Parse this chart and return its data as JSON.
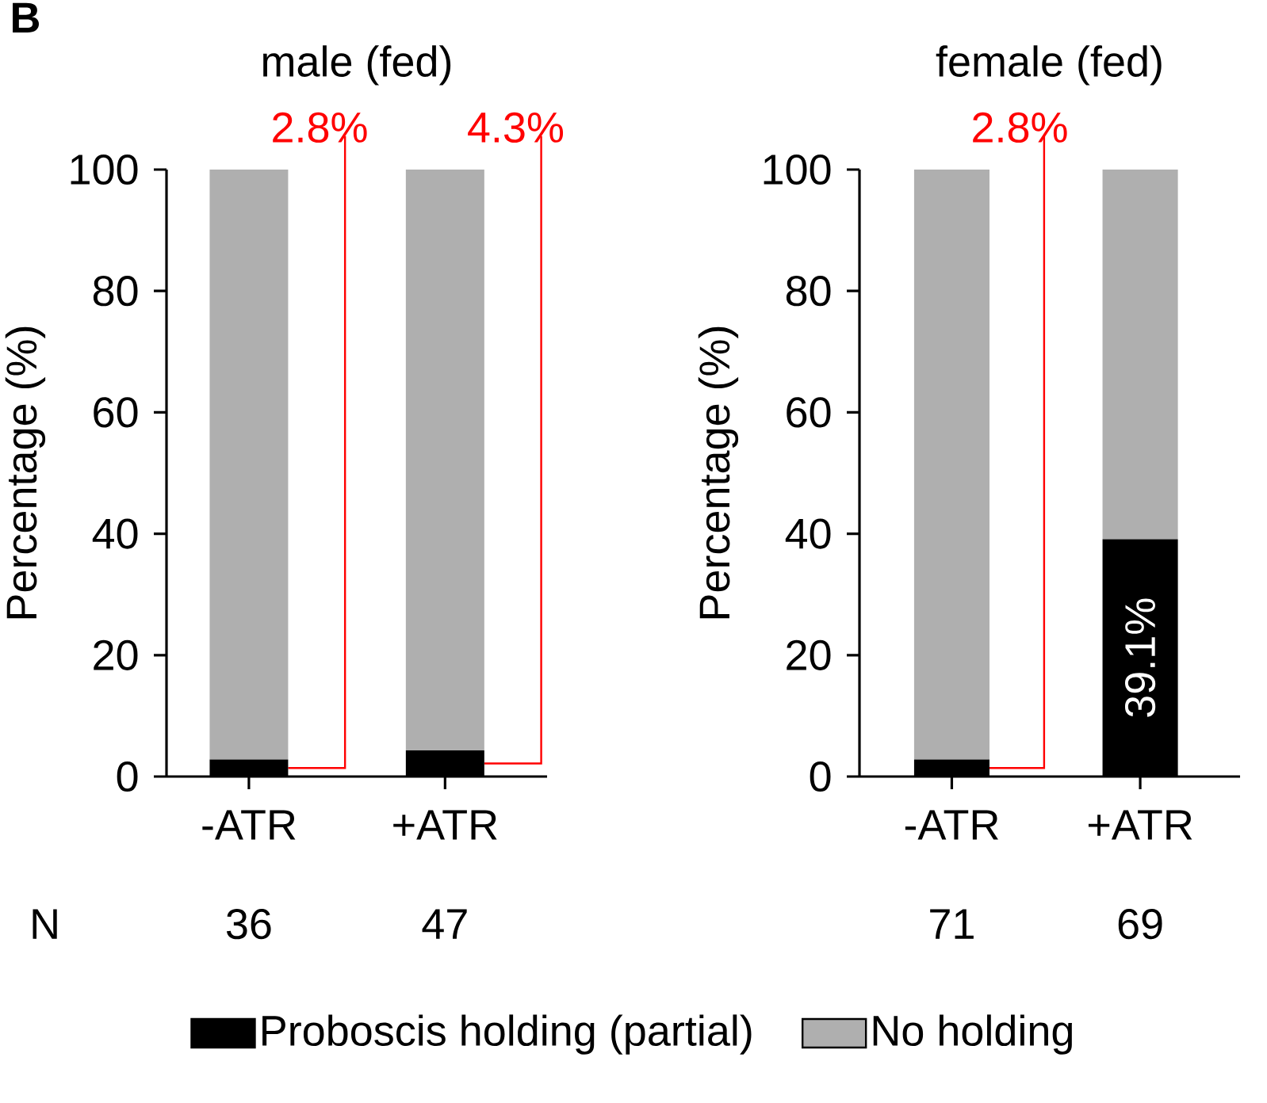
{
  "chart_data": [
    {
      "type": "bar",
      "title": "male (fed)",
      "ylabel": "Percentage (%)",
      "categories": [
        "-ATR",
        "+ATR"
      ],
      "stacked": true,
      "ylim": [
        0,
        100
      ],
      "yticks": [
        0,
        20,
        40,
        60,
        80,
        100
      ],
      "legend": "bottom",
      "series": [
        {
          "name": "Proboscis holding (partial)",
          "color": "#000000",
          "values": [
            2.8,
            4.3
          ],
          "value_labels": [
            "2.8%",
            "4.3%"
          ]
        },
        {
          "name": "No holding",
          "color": "#afafaf",
          "values": [
            97.2,
            95.7
          ]
        }
      ],
      "annotations": [
        "B",
        "N",
        "36",
        "47"
      ]
    },
    {
      "type": "bar",
      "title": "female (fed)",
      "ylabel": "Percentage (%)",
      "categories": [
        "-ATR",
        "+ATR"
      ],
      "stacked": true,
      "ylim": [
        0,
        100
      ],
      "yticks": [
        0,
        20,
        40,
        60,
        80,
        100
      ],
      "series": [
        {
          "color": "#000000",
          "values": [
            2.8,
            39.1
          ],
          "value_labels": [
            "2.8%",
            "39.1%"
          ]
        },
        {
          "color": "#afafaf",
          "values": [
            97.2,
            60.9
          ]
        }
      ],
      "annotations": [
        "71",
        "69"
      ]
    }
  ]
}
